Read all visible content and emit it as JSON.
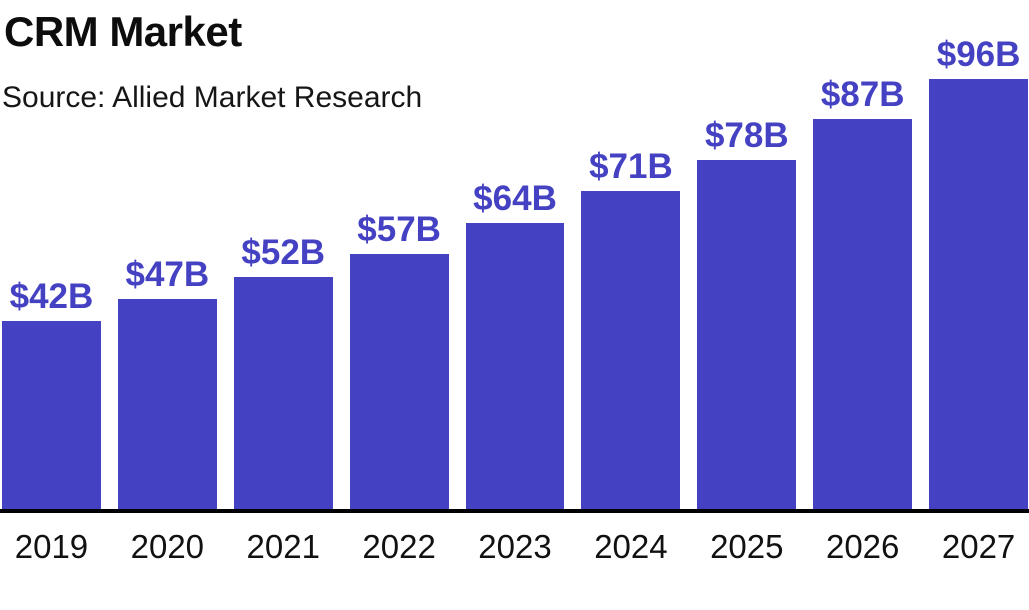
{
  "header": {
    "title": "CRM Market",
    "source": "Source: Allied Market Research"
  },
  "colors": {
    "bar": "#4541C3",
    "value_label": "#4541C3",
    "title_text": "#0d0d0d",
    "axis": "#000000",
    "background": "#ffffff"
  },
  "chart_data": {
    "type": "bar",
    "title": "CRM Market",
    "subtitle": "Source: Allied Market Research",
    "categories": [
      "2019",
      "2020",
      "2021",
      "2022",
      "2023",
      "2024",
      "2025",
      "2026",
      "2027"
    ],
    "values": [
      42,
      47,
      52,
      57,
      64,
      71,
      78,
      87,
      96
    ],
    "value_labels": [
      "$42B",
      "$47B",
      "$52B",
      "$57B",
      "$64B",
      "$71B",
      "$78B",
      "$87B",
      "$96B"
    ],
    "xlabel": "",
    "ylabel": "",
    "ylim": [
      0,
      96
    ],
    "grid": "off",
    "legend": "none",
    "bar_color": "#4541C3",
    "label_position": "above-bar"
  }
}
